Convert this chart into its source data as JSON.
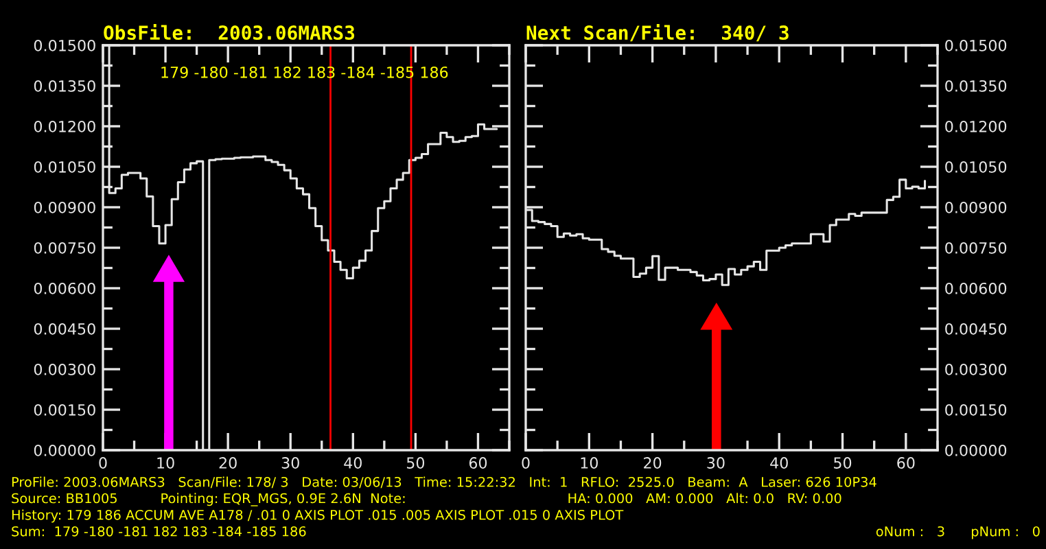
{
  "chart_data": [
    {
      "type": "step",
      "title": "ObsFile:  2003.06MARS3",
      "x": [
        0,
        1,
        2,
        3,
        4,
        5,
        6,
        7,
        8,
        9,
        10,
        11,
        12,
        13,
        14,
        15,
        16,
        17,
        18,
        19,
        20,
        21,
        22,
        23,
        24,
        25,
        26,
        27,
        28,
        29,
        30,
        31,
        32,
        33,
        34,
        35,
        36,
        37,
        38,
        39,
        40,
        41,
        42,
        43,
        44,
        45,
        46,
        47,
        48,
        49,
        50,
        51,
        52,
        53,
        54,
        55,
        56,
        57,
        58,
        59,
        60,
        61,
        62,
        63
      ],
      "series": [
        {
          "color": "#e6e6e6",
          "values": [
            0.015,
            0.00953,
            0.0097,
            0.0102,
            0.01027,
            0.01027,
            0.01007,
            0.0094,
            0.0083,
            0.00766,
            0.00834,
            0.0093,
            0.00993,
            0.0104,
            0.01063,
            0.0107,
            0.0,
            0.01075,
            0.01078,
            0.0108,
            0.0108,
            0.01083,
            0.01085,
            0.01085,
            0.01088,
            0.01088,
            0.01075,
            0.01068,
            0.01057,
            0.01037,
            0.01007,
            0.0097,
            0.00948,
            0.00897,
            0.0083,
            0.00778,
            0.0074,
            0.00698,
            0.00668,
            0.00637,
            0.00676,
            0.00702,
            0.0074,
            0.00812,
            0.00897,
            0.00922,
            0.0097,
            0.01002,
            0.01027,
            0.01075,
            0.01083,
            0.01097,
            0.01134,
            0.01134,
            0.01176,
            0.0116,
            0.01142,
            0.01146,
            0.0116,
            0.01164,
            0.01207,
            0.0119,
            0.0119,
            0.0119
          ]
        }
      ],
      "xlim": [
        0,
        65
      ],
      "xticks": [
        0,
        10,
        20,
        30,
        40,
        50,
        60
      ],
      "ylim": [
        0,
        0.015
      ],
      "yticks": [
        {
          "value": 0,
          "label": "0.00000"
        },
        {
          "value": 0.0015,
          "label": "0.00150"
        },
        {
          "value": 0.003,
          "label": "0.00300"
        },
        {
          "value": 0.0045,
          "label": "0.00450"
        },
        {
          "value": 0.006,
          "label": "0.00600"
        },
        {
          "value": 0.0075,
          "label": "0.00750"
        },
        {
          "value": 0.009,
          "label": "0.00900"
        },
        {
          "value": 0.0105,
          "label": "0.01050"
        },
        {
          "value": 0.012,
          "label": "0.01200"
        },
        {
          "value": 0.0135,
          "label": "0.01350"
        },
        {
          "value": 0.015,
          "label": "0.01500"
        }
      ],
      "ref_lines": [
        {
          "axis": "x",
          "value": 36.4,
          "color": "#ff0000"
        },
        {
          "axis": "x",
          "value": 49.3,
          "color": "#ff0000"
        }
      ],
      "grid": false,
      "legend": false,
      "annotations": [
        "179 -180 -181 182 183 -184 -185 186",
        "ProFile: 2003.06MARS3   Scan/File: 178/ 3   Date: 03/06/13   Time: 15:22:32   Int:  1   RFLO:  2525.0   Beam:  A   Laser: 626 10P34",
        "Source: BB1005          Pointing: EQR_MGS, 0.9E 2.6N  Note:                                      HA: 0.000   AM: 0.000   Alt: 0.0   RV: 0.00",
        "History: 179 186 ACCUM AVE A178 / .01 0 AXIS PLOT .015 .005 AXIS PLOT .015 0 AXIS PLOT",
        "Sum:  179 -180 -181 182 183 -184 -185 186",
        "oNum :   3      pNum :   0"
      ]
    },
    {
      "type": "step",
      "title": "Next Scan/File:  340/ 3",
      "x": [
        0,
        1,
        2,
        3,
        4,
        5,
        6,
        7,
        8,
        9,
        10,
        11,
        12,
        13,
        14,
        15,
        16,
        17,
        18,
        19,
        20,
        21,
        22,
        23,
        24,
        25,
        26,
        27,
        28,
        29,
        30,
        31,
        32,
        33,
        34,
        35,
        36,
        37,
        38,
        39,
        40,
        41,
        42,
        43,
        44,
        45,
        46,
        47,
        48,
        49,
        50,
        51,
        52,
        53,
        54,
        55,
        56,
        57,
        58,
        59,
        60,
        61,
        62,
        63
      ],
      "series": [
        {
          "color": "#e6e6e6",
          "axis": "y2",
          "values": [
            0.0089,
            0.00849,
            0.00845,
            0.00838,
            0.0083,
            0.0079,
            0.00803,
            0.00795,
            0.008,
            0.00785,
            0.0078,
            0.0078,
            0.00745,
            0.00735,
            0.0072,
            0.0071,
            0.0071,
            0.00642,
            0.00654,
            0.00676,
            0.00719,
            0.00631,
            0.00676,
            0.00676,
            0.00668,
            0.00668,
            0.0066,
            0.00647,
            0.00629,
            0.00634,
            0.00651,
            0.00612,
            0.00671,
            0.00651,
            0.00668,
            0.00681,
            0.00698,
            0.00668,
            0.00739,
            0.00739,
            0.0075,
            0.00759,
            0.00766,
            0.00766,
            0.00766,
            0.008,
            0.008,
            0.00773,
            0.00834,
            0.00854,
            0.00854,
            0.00875,
            0.00868,
            0.0088,
            0.0088,
            0.0088,
            0.0088,
            0.00927,
            0.00939,
            0.01002,
            0.0097,
            0.00976,
            0.0097,
            0.00998
          ]
        }
      ],
      "xlim": [
        0,
        65
      ],
      "xticks": [
        0,
        10,
        20,
        30,
        40,
        50,
        60
      ],
      "y2lim": [
        0,
        0.015
      ],
      "y2ticks": [
        {
          "value": 0,
          "label": "0.00000"
        },
        {
          "value": 0.0015,
          "label": "0.00150"
        },
        {
          "value": 0.003,
          "label": "0.00300"
        },
        {
          "value": 0.0045,
          "label": "0.00450"
        },
        {
          "value": 0.006,
          "label": "0.00600"
        },
        {
          "value": 0.0075,
          "label": "0.00750"
        },
        {
          "value": 0.009,
          "label": "0.00900"
        },
        {
          "value": 0.0105,
          "label": "0.01050"
        },
        {
          "value": 0.012,
          "label": "0.01200"
        },
        {
          "value": 0.0135,
          "label": "0.01350"
        },
        {
          "value": 0.015,
          "label": "0.01500"
        }
      ],
      "grid": false,
      "legend": false
    }
  ]
}
